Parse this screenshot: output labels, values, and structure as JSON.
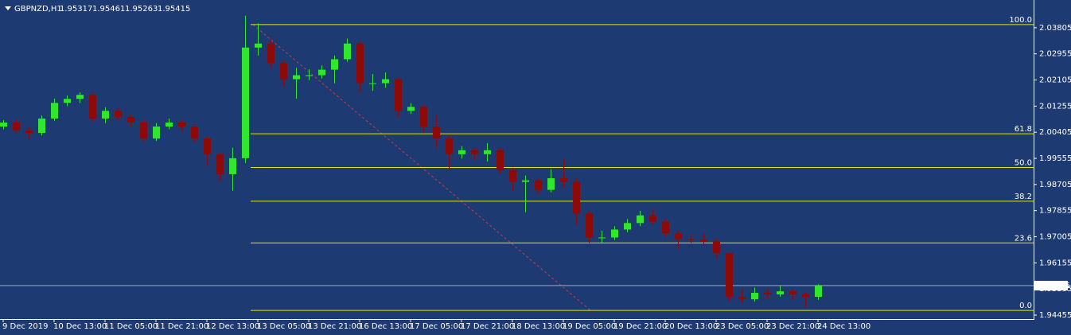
{
  "chart_data": {
    "type": "candlestick",
    "title": "GBPNZD,H1",
    "ohlc": [
      1.95317,
      1.95461,
      1.95263,
      1.95415
    ],
    "categories": [
      "9 Dec 2019",
      null,
      null,
      null,
      "10 Dec 13:00",
      null,
      null,
      null,
      "11 Dec 05:00",
      null,
      null,
      null,
      "11 Dec 21:00",
      null,
      null,
      null,
      "12 Dec 13:00",
      null,
      null,
      null,
      "13 Dec 05:00",
      null,
      null,
      null,
      "13 Dec 21:00",
      null,
      null,
      null,
      "16 Dec 13:00",
      null,
      null,
      null,
      "17 Dec 05:00",
      null,
      null,
      null,
      "17 Dec 21:00",
      null,
      null,
      null,
      "18 Dec 13:00",
      null,
      null,
      null,
      "19 Dec 05:00",
      null,
      null,
      null,
      "19 Dec 21:00",
      null,
      null,
      null,
      "20 Dec 13:00",
      null,
      null,
      null,
      "23 Dec 05:00",
      null,
      null,
      null,
      "23 Dec 21:00",
      null,
      null,
      null,
      "24 Dec 13:00"
    ],
    "open": [
      2.0059,
      2.0072,
      2.0046,
      2.0038,
      2.0085,
      2.0136,
      2.0149,
      2.0162,
      2.0085,
      2.011,
      2.009,
      2.0072,
      2.002,
      2.0059,
      2.0072,
      2.0059,
      2.002,
      1.9969,
      1.9904,
      1.9956,
      2.0316,
      2.0329,
      2.0265,
      2.0213,
      2.0226,
      2.0226,
      2.0244,
      2.0278,
      2.0329,
      2.02,
      2.02,
      2.0213,
      2.011,
      2.0123,
      2.0059,
      2.002,
      1.9969,
      1.9982,
      1.9969,
      1.9982,
      1.9917,
      1.9879,
      1.9884,
      1.9853,
      1.9891,
      1.9879,
      1.9776,
      1.9698,
      1.9698,
      1.9724,
      1.9745,
      1.977,
      1.975,
      1.9711,
      1.9693,
      1.9691,
      1.9685,
      1.9647,
      1.9505,
      1.9497,
      1.9518,
      1.9513,
      1.9523,
      1.9513,
      1.9505
    ],
    "high": [
      2.008,
      2.0082,
      2.0055,
      2.0095,
      2.015,
      2.016,
      2.017,
      2.0168,
      2.0122,
      2.0118,
      2.01,
      2.008,
      2.007,
      2.0085,
      2.008,
      2.0065,
      2.0028,
      1.9975,
      1.999,
      2.042,
      2.0395,
      2.034,
      2.0275,
      2.025,
      2.0245,
      2.0258,
      2.029,
      2.0345,
      2.0335,
      2.023,
      2.0235,
      2.022,
      2.0135,
      2.013,
      2.0095,
      2.003,
      1.9995,
      1.999,
      2.0005,
      1.999,
      1.9925,
      1.99,
      1.989,
      1.992,
      1.9955,
      1.989,
      1.9785,
      1.972,
      1.9735,
      1.9758,
      1.9785,
      1.9788,
      1.976,
      1.972,
      1.9705,
      1.971,
      1.9695,
      1.965,
      1.953,
      1.9535,
      1.953,
      1.954,
      1.953,
      1.952,
      1.9546
    ],
    "low": [
      2.005,
      2.0038,
      2.002,
      2.003,
      2.0078,
      2.0125,
      2.0135,
      2.0075,
      2.007,
      2.008,
      2.006,
      2.001,
      2.0012,
      2.005,
      2.0045,
      2.0008,
      1.993,
      1.988,
      1.985,
      1.994,
      2.029,
      2.025,
      2.019,
      2.015,
      2.021,
      2.0215,
      2.02,
      2.027,
      2.017,
      2.0175,
      2.0185,
      2.009,
      2.01,
      2.004,
      1.999,
      1.992,
      1.9955,
      1.995,
      1.9945,
      1.9905,
      1.985,
      1.978,
      1.984,
      1.9845,
      1.986,
      1.974,
      1.968,
      1.968,
      1.969,
      1.9715,
      1.9735,
      1.974,
      1.97,
      1.966,
      1.968,
      1.9675,
      1.963,
      1.949,
      1.9485,
      1.949,
      1.95,
      1.9505,
      1.9495,
      1.947,
      1.9495
    ],
    "close": [
      2.0072,
      2.0046,
      2.0038,
      2.0085,
      2.0136,
      2.0149,
      2.0162,
      2.0085,
      2.011,
      2.009,
      2.0072,
      2.002,
      2.0059,
      2.0072,
      2.0059,
      2.002,
      1.9969,
      1.9904,
      1.9956,
      2.0316,
      2.0329,
      2.0265,
      2.0213,
      2.0226,
      2.0226,
      2.0244,
      2.0278,
      2.0329,
      2.02,
      2.02,
      2.0213,
      2.011,
      2.0123,
      2.0059,
      2.002,
      1.9969,
      1.9982,
      1.9969,
      1.9982,
      1.9917,
      1.9879,
      1.9884,
      1.9853,
      1.9891,
      1.9879,
      1.9776,
      1.9698,
      1.9698,
      1.9724,
      1.9745,
      1.977,
      1.975,
      1.9711,
      1.9693,
      1.9691,
      1.9685,
      1.9647,
      1.9505,
      1.9497,
      1.9518,
      1.9513,
      1.9523,
      1.9513,
      1.9505,
      1.9542
    ],
    "up_color": "#32e62d",
    "down_color": "#8b0a0a",
    "ylim": [
      1.94326,
      2.04707
    ],
    "yticks": [
      1.94455,
      1.95305,
      1.96155,
      1.97005,
      1.97855,
      1.98705,
      1.99555,
      2.00405,
      2.01255,
      2.02105,
      2.02955,
      2.03805
    ],
    "last_price": 1.95415,
    "fibonacci": {
      "high": 2.03908,
      "low": 1.94609,
      "color": "#e6e600",
      "trend_color": "#c83c3c",
      "levels": [
        {
          "value": 100,
          "label": "100.0"
        },
        {
          "value": 61.8,
          "label": "61.8"
        },
        {
          "value": 50,
          "label": "50.0"
        },
        {
          "value": 38.2,
          "label": "38.2"
        },
        {
          "value": 23.6,
          "label": "23.6"
        },
        {
          "value": 0,
          "label": "0.0"
        }
      ]
    }
  }
}
